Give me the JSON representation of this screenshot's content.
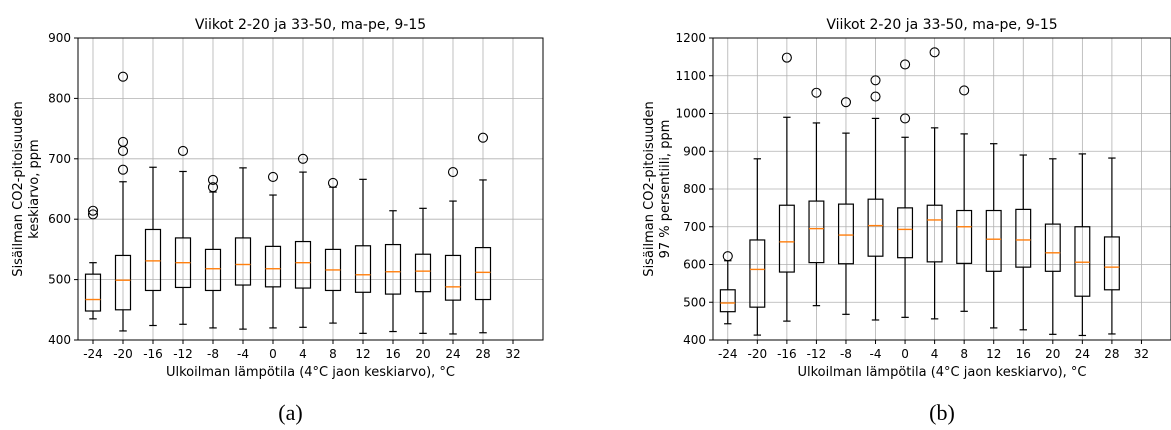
{
  "chart_data": [
    {
      "type": "box",
      "panel_label": "(a)",
      "title": "Viikot 2-20 ja 33-50, ma-pe, 9-15",
      "xlabel": "Ulkoilman lämpötila (4°C jaon keskiarvo), °C",
      "ylabel_lines": [
        "Sisäilman CO2-pitoisuuden",
        "keskiarvo, ppm"
      ],
      "ylim": [
        400,
        900
      ],
      "yticks": [
        400,
        500,
        600,
        700,
        800,
        900
      ],
      "categories": [
        "-24",
        "-20",
        "-16",
        "-12",
        "-8",
        "-4",
        "0",
        "4",
        "8",
        "12",
        "16",
        "20",
        "24",
        "28",
        "32"
      ],
      "grid": true,
      "boxes": [
        {
          "x": "-24",
          "whislo": 435,
          "q1": 448,
          "med": 467,
          "q3": 509,
          "whishi": 528,
          "fliers": [
            608,
            614
          ]
        },
        {
          "x": "-20",
          "whislo": 415,
          "q1": 450,
          "med": 499,
          "q3": 540,
          "whishi": 662,
          "fliers": [
            682,
            713,
            728,
            836
          ]
        },
        {
          "x": "-16",
          "whislo": 424,
          "q1": 482,
          "med": 531,
          "q3": 583,
          "whishi": 686,
          "fliers": []
        },
        {
          "x": "-12",
          "whislo": 426,
          "q1": 487,
          "med": 528,
          "q3": 569,
          "whishi": 679,
          "fliers": [
            713
          ]
        },
        {
          "x": "-8",
          "whislo": 420,
          "q1": 482,
          "med": 518,
          "q3": 550,
          "whishi": 645,
          "fliers": [
            653,
            665
          ]
        },
        {
          "x": "-4",
          "whislo": 418,
          "q1": 491,
          "med": 525,
          "q3": 569,
          "whishi": 685,
          "fliers": []
        },
        {
          "x": "0",
          "whislo": 420,
          "q1": 488,
          "med": 518,
          "q3": 555,
          "whishi": 640,
          "fliers": [
            670
          ]
        },
        {
          "x": "4",
          "whislo": 421,
          "q1": 486,
          "med": 528,
          "q3": 563,
          "whishi": 678,
          "fliers": [
            700
          ]
        },
        {
          "x": "8",
          "whislo": 428,
          "q1": 482,
          "med": 516,
          "q3": 550,
          "whishi": 653,
          "fliers": [
            660
          ]
        },
        {
          "x": "12",
          "whislo": 411,
          "q1": 479,
          "med": 508,
          "q3": 556,
          "whishi": 666,
          "fliers": []
        },
        {
          "x": "16",
          "whislo": 414,
          "q1": 476,
          "med": 513,
          "q3": 558,
          "whishi": 614,
          "fliers": []
        },
        {
          "x": "20",
          "whislo": 411,
          "q1": 480,
          "med": 514,
          "q3": 542,
          "whishi": 618,
          "fliers": []
        },
        {
          "x": "24",
          "whislo": 410,
          "q1": 466,
          "med": 488,
          "q3": 540,
          "whishi": 630,
          "fliers": [
            678
          ]
        },
        {
          "x": "28",
          "whislo": 412,
          "q1": 467,
          "med": 512,
          "q3": 553,
          "whishi": 665,
          "fliers": [
            735
          ]
        }
      ]
    },
    {
      "type": "box",
      "panel_label": "(b)",
      "title": "Viikot 2-20 ja 33-50, ma-pe, 9-15",
      "xlabel": "Ulkoilman lämpötila (4°C jaon keskiarvo), °C",
      "ylabel_lines": [
        "Sisäilman CO2-pitoisuuden",
        "97 % persentiili, ppm"
      ],
      "ylim": [
        400,
        1200
      ],
      "yticks": [
        400,
        500,
        600,
        700,
        800,
        900,
        1000,
        1100,
        1200
      ],
      "categories": [
        "-24",
        "-20",
        "-16",
        "-12",
        "-8",
        "-4",
        "0",
        "4",
        "8",
        "12",
        "16",
        "20",
        "24",
        "28",
        "32"
      ],
      "grid": true,
      "boxes": [
        {
          "x": "-24",
          "whislo": 443,
          "q1": 475,
          "med": 498,
          "q3": 533,
          "whishi": 610,
          "fliers": [
            622
          ]
        },
        {
          "x": "-20",
          "whislo": 413,
          "q1": 487,
          "med": 587,
          "q3": 665,
          "whishi": 880,
          "fliers": []
        },
        {
          "x": "-16",
          "whislo": 450,
          "q1": 580,
          "med": 660,
          "q3": 757,
          "whishi": 990,
          "fliers": [
            1148
          ]
        },
        {
          "x": "-12",
          "whislo": 491,
          "q1": 605,
          "med": 695,
          "q3": 768,
          "whishi": 975,
          "fliers": [
            1055
          ]
        },
        {
          "x": "-8",
          "whislo": 468,
          "q1": 602,
          "med": 678,
          "q3": 760,
          "whishi": 948,
          "fliers": [
            1030
          ]
        },
        {
          "x": "-4",
          "whislo": 453,
          "q1": 622,
          "med": 703,
          "q3": 773,
          "whishi": 987,
          "fliers": [
            1045,
            1088
          ]
        },
        {
          "x": "0",
          "whislo": 460,
          "q1": 618,
          "med": 693,
          "q3": 750,
          "whishi": 937,
          "fliers": [
            987,
            1130
          ]
        },
        {
          "x": "4",
          "whislo": 456,
          "q1": 607,
          "med": 718,
          "q3": 757,
          "whishi": 962,
          "fliers": [
            1162
          ]
        },
        {
          "x": "8",
          "whislo": 476,
          "q1": 603,
          "med": 700,
          "q3": 743,
          "whishi": 946,
          "fliers": [
            1061
          ]
        },
        {
          "x": "12",
          "whislo": 432,
          "q1": 582,
          "med": 667,
          "q3": 743,
          "whishi": 920,
          "fliers": []
        },
        {
          "x": "16",
          "whislo": 427,
          "q1": 593,
          "med": 665,
          "q3": 746,
          "whishi": 890,
          "fliers": []
        },
        {
          "x": "20",
          "whislo": 415,
          "q1": 582,
          "med": 631,
          "q3": 707,
          "whishi": 880,
          "fliers": []
        },
        {
          "x": "24",
          "whislo": 412,
          "q1": 516,
          "med": 606,
          "q3": 700,
          "whishi": 893,
          "fliers": []
        },
        {
          "x": "28",
          "whislo": 416,
          "q1": 533,
          "med": 593,
          "q3": 673,
          "whishi": 882,
          "fliers": []
        }
      ]
    }
  ]
}
